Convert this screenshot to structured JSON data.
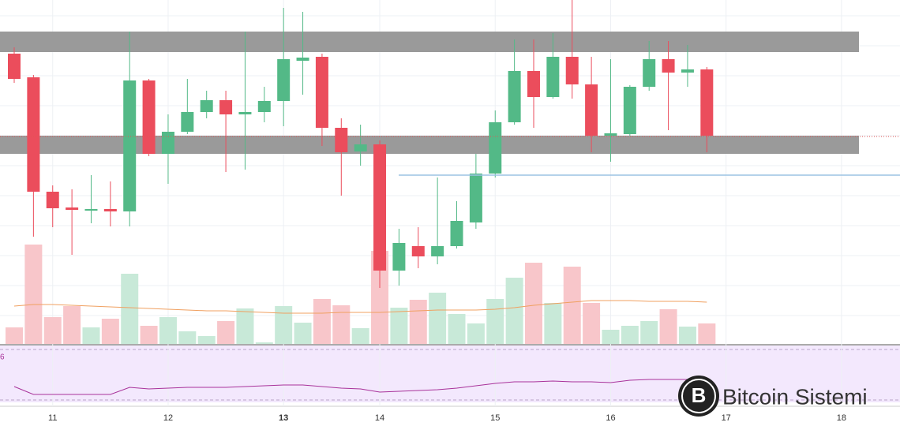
{
  "chart_data": {
    "type": "candlestick",
    "categories": [
      null,
      null,
      "11",
      null,
      null,
      null,
      null,
      null,
      "12",
      null,
      null,
      null,
      null,
      null,
      "13",
      null,
      null,
      null,
      null,
      "14",
      null,
      null,
      null,
      null,
      null,
      "15",
      null,
      null,
      null,
      null,
      null,
      "16",
      null,
      null,
      null,
      null,
      null,
      "17",
      null,
      null,
      null,
      null,
      null,
      "18"
    ],
    "open": [
      372,
      342,
      197,
      177,
      173,
      175,
      172,
      338,
      245,
      273,
      298,
      313,
      295,
      298,
      312,
      363,
      368,
      278,
      248,
      257,
      97,
      128,
      115,
      128,
      158,
      220,
      285,
      350,
      317,
      368,
      333,
      268,
      270,
      330,
      365,
      348,
      352,
      null,
      null,
      null,
      null,
      null,
      null,
      null
    ],
    "high": [
      380,
      345,
      205,
      200,
      218,
      210,
      400,
      340,
      295,
      340,
      325,
      325,
      400,
      330,
      430,
      425,
      372,
      290,
      282,
      262,
      150,
      152,
      215,
      185,
      245,
      300,
      390,
      390,
      398,
      440,
      368,
      365,
      332,
      388,
      388,
      383,
      355,
      null,
      null,
      null,
      null,
      null,
      null,
      null
    ],
    "low": [
      335,
      140,
      152,
      117,
      157,
      153,
      153,
      242,
      207,
      270,
      290,
      222,
      225,
      285,
      280,
      320,
      255,
      192,
      230,
      75,
      78,
      100,
      105,
      125,
      150,
      215,
      282,
      278,
      315,
      315,
      247,
      235,
      268,
      325,
      275,
      330,
      247,
      null,
      null,
      null,
      null,
      null,
      null,
      null
    ],
    "close": [
      340,
      197,
      176,
      174,
      175,
      172,
      338,
      245,
      273,
      298,
      313,
      295,
      298,
      312,
      365,
      367,
      278,
      247,
      257,
      97,
      132,
      115,
      128,
      160,
      220,
      285,
      350,
      317,
      368,
      333,
      268,
      271,
      330,
      365,
      348,
      352,
      268,
      null,
      null,
      null,
      null,
      null,
      null,
      null
    ],
    "volume": [
      21,
      126,
      34,
      48,
      21,
      32,
      89,
      23,
      34,
      16,
      10,
      29,
      45,
      2,
      48,
      27,
      57,
      49,
      20,
      118,
      46,
      56,
      65,
      38,
      26,
      57,
      84,
      103,
      52,
      98,
      52,
      18,
      23,
      29,
      44,
      22,
      26,
      null,
      null,
      null,
      null,
      null,
      null,
      null
    ],
    "volume_ma": [
      48,
      50,
      50,
      49,
      48,
      47,
      46,
      45,
      44,
      43,
      42,
      42,
      41,
      40,
      39,
      39,
      39,
      40,
      40,
      40,
      41,
      42,
      43,
      43,
      43,
      44,
      46,
      49,
      51,
      53,
      55,
      55,
      55,
      54,
      54,
      54,
      53,
      null,
      null,
      null,
      null,
      null,
      null,
      null
    ],
    "rsi": [
      20,
      10,
      10,
      10,
      10,
      10,
      19,
      17,
      18,
      19,
      19,
      19,
      20,
      21,
      22,
      22,
      20,
      18,
      17,
      13,
      14,
      15,
      16,
      18,
      21,
      24,
      26,
      26,
      27,
      26,
      26,
      25,
      28,
      29,
      29,
      29,
      29,
      null,
      null,
      null,
      null,
      null,
      null,
      null
    ],
    "ylim": [
      0,
      440
    ],
    "volume_lim": [
      0,
      436
    ],
    "rsi_lim": [
      0,
      72
    ],
    "zones": [
      {
        "low": 374,
        "high": 400
      },
      {
        "low": 245,
        "high": 268
      }
    ],
    "red_line": 267,
    "blue_line": 218,
    "up_color": "#53b987",
    "down_color": "#eb4d5c",
    "up_volume_color": "#c8e9d8",
    "down_volume_color": "#f8c6ca",
    "ma_color": "#f0a060",
    "rsi_color": "#a8329a",
    "zone_color": "#9a9a9a",
    "rsi_label": "6",
    "watermark": "Bitcoin Sistemi",
    "grid": true
  }
}
